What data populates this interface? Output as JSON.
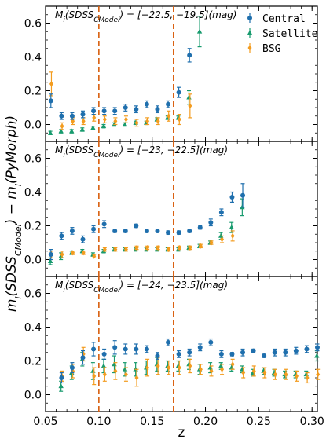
{
  "chart_data": {
    "type": "scatter",
    "xlabel": "z",
    "ylabel": "m_i(SDSS_CModel) − m_i(PyMorph)",
    "xlim": [
      0.05,
      0.305
    ],
    "ylim": [
      -0.1,
      0.7
    ],
    "x_ticks": [
      "0.05",
      "0.10",
      "0.15",
      "0.20",
      "0.25",
      "0.30"
    ],
    "y_ticks": [
      "0.0",
      "0.2",
      "0.4",
      "0.6"
    ],
    "vlines": [
      0.1,
      0.17
    ],
    "vline_color": "#d95f0e",
    "legend_position": "top-right",
    "legend": [
      {
        "name": "Central",
        "color": "#1f6fad",
        "marker": "circle"
      },
      {
        "name": "Satellite",
        "color": "#189b6e",
        "marker": "triangle"
      },
      {
        "name": "BSG",
        "color": "#f39c1f",
        "marker": "diamond"
      }
    ],
    "panels": [
      {
        "label": "M_i(SDSS_CModel) = [−22.5, −19.5](mag)",
        "label_parts": {
          "pre": "M",
          "sub1": "i",
          "mid": "(SDSS",
          "sub2": "CModel",
          "post": ") = [−22.5, −19.5](mag)"
        },
        "central": [
          [
            0.055,
            0.14,
            0.04
          ],
          [
            0.065,
            0.05,
            0.02
          ],
          [
            0.075,
            0.05,
            0.02
          ],
          [
            0.085,
            0.06,
            0.02
          ],
          [
            0.095,
            0.08,
            0.02
          ],
          [
            0.105,
            0.08,
            0.02
          ],
          [
            0.115,
            0.08,
            0.02
          ],
          [
            0.125,
            0.1,
            0.02
          ],
          [
            0.135,
            0.09,
            0.02
          ],
          [
            0.145,
            0.12,
            0.02
          ],
          [
            0.155,
            0.09,
            0.02
          ],
          [
            0.165,
            0.12,
            0.02
          ],
          [
            0.175,
            0.19,
            0.03
          ],
          [
            0.185,
            0.41,
            0.04
          ]
        ],
        "satellite": [
          [
            0.055,
            -0.05,
            0.01
          ],
          [
            0.065,
            -0.04,
            0.01
          ],
          [
            0.075,
            -0.04,
            0.01
          ],
          [
            0.085,
            -0.03,
            0.01
          ],
          [
            0.095,
            -0.02,
            0.01
          ],
          [
            0.105,
            -0.01,
            0.01
          ],
          [
            0.115,
            0.0,
            0.01
          ],
          [
            0.125,
            0.0,
            0.01
          ],
          [
            0.135,
            0.01,
            0.01
          ],
          [
            0.145,
            0.01,
            0.01
          ],
          [
            0.155,
            0.03,
            0.01
          ],
          [
            0.165,
            0.04,
            0.01
          ],
          [
            0.175,
            0.04,
            0.01
          ],
          [
            0.185,
            0.16,
            0.04
          ],
          [
            0.195,
            0.55,
            0.09
          ]
        ],
        "bsg": [
          [
            0.055,
            0.24,
            0.07
          ],
          [
            0.065,
            -0.01,
            0.02
          ],
          [
            0.075,
            0.02,
            0.02
          ],
          [
            0.085,
            0.02,
            0.02
          ],
          [
            0.095,
            0.04,
            0.02
          ],
          [
            0.105,
            0.03,
            0.02
          ],
          [
            0.115,
            0.02,
            0.02
          ],
          [
            0.125,
            0.03,
            0.02
          ],
          [
            0.135,
            0.01,
            0.02
          ],
          [
            0.145,
            0.02,
            0.02
          ],
          [
            0.155,
            0.02,
            0.02
          ],
          [
            0.165,
            0.05,
            0.03
          ],
          [
            0.175,
            0.03,
            0.03
          ],
          [
            0.185,
            0.11,
            0.07
          ]
        ]
      },
      {
        "label": "M_i(SDSS_CModel) = [−23, −22.5](mag)",
        "label_parts": {
          "pre": "M",
          "sub1": "i",
          "mid": "(SDSS",
          "sub2": "CModel",
          "post": ") = [−23, −22.5](mag)"
        },
        "central": [
          [
            0.055,
            0.03,
            0.03
          ],
          [
            0.065,
            0.14,
            0.02
          ],
          [
            0.075,
            0.17,
            0.02
          ],
          [
            0.085,
            0.12,
            0.02
          ],
          [
            0.095,
            0.18,
            0.02
          ],
          [
            0.105,
            0.21,
            0.02
          ],
          [
            0.115,
            0.17,
            0.01
          ],
          [
            0.125,
            0.17,
            0.01
          ],
          [
            0.135,
            0.2,
            0.01
          ],
          [
            0.145,
            0.17,
            0.01
          ],
          [
            0.155,
            0.17,
            0.01
          ],
          [
            0.165,
            0.16,
            0.01
          ],
          [
            0.175,
            0.16,
            0.01
          ],
          [
            0.185,
            0.17,
            0.01
          ],
          [
            0.195,
            0.19,
            0.01
          ],
          [
            0.205,
            0.22,
            0.02
          ],
          [
            0.215,
            0.28,
            0.02
          ],
          [
            0.225,
            0.37,
            0.03
          ],
          [
            0.235,
            0.38,
            0.07
          ]
        ],
        "satellite": [
          [
            0.055,
            -0.01,
            0.02
          ],
          [
            0.065,
            0.02,
            0.02
          ],
          [
            0.075,
            0.04,
            0.01
          ],
          [
            0.085,
            0.05,
            0.01
          ],
          [
            0.095,
            0.03,
            0.01
          ],
          [
            0.105,
            0.05,
            0.01
          ],
          [
            0.115,
            0.06,
            0.01
          ],
          [
            0.125,
            0.06,
            0.01
          ],
          [
            0.135,
            0.06,
            0.01
          ],
          [
            0.145,
            0.06,
            0.01
          ],
          [
            0.155,
            0.06,
            0.01
          ],
          [
            0.165,
            0.06,
            0.01
          ],
          [
            0.175,
            0.06,
            0.01
          ],
          [
            0.185,
            0.07,
            0.01
          ],
          [
            0.195,
            0.08,
            0.01
          ],
          [
            0.205,
            0.1,
            0.01
          ],
          [
            0.215,
            0.14,
            0.02
          ],
          [
            0.225,
            0.19,
            0.03
          ],
          [
            0.235,
            0.31,
            0.05
          ]
        ],
        "bsg": [
          [
            0.055,
            0.03,
            0.02
          ],
          [
            0.065,
            0.03,
            0.02
          ],
          [
            0.075,
            0.04,
            0.01
          ],
          [
            0.085,
            0.04,
            0.01
          ],
          [
            0.095,
            0.02,
            0.01
          ],
          [
            0.105,
            0.06,
            0.01
          ],
          [
            0.115,
            0.06,
            0.01
          ],
          [
            0.125,
            0.06,
            0.01
          ],
          [
            0.135,
            0.07,
            0.01
          ],
          [
            0.145,
            0.07,
            0.01
          ],
          [
            0.155,
            0.07,
            0.01
          ],
          [
            0.165,
            0.06,
            0.01
          ],
          [
            0.175,
            0.07,
            0.01
          ],
          [
            0.185,
            0.07,
            0.01
          ],
          [
            0.195,
            0.08,
            0.01
          ],
          [
            0.205,
            0.1,
            0.01
          ],
          [
            0.215,
            0.12,
            0.02
          ],
          [
            0.225,
            0.14,
            0.03
          ]
        ]
      },
      {
        "label": "M_i(SDSS_CModel) = [−24, −23.5](mag)",
        "label_parts": {
          "pre": "M",
          "sub1": "i",
          "mid": "(SDSS",
          "sub2": "CModel",
          "post": ") = [−24, −23.5](mag)"
        },
        "central": [
          [
            0.065,
            0.1,
            0.03
          ],
          [
            0.075,
            0.16,
            0.03
          ],
          [
            0.085,
            0.22,
            0.04
          ],
          [
            0.095,
            0.27,
            0.04
          ],
          [
            0.105,
            0.24,
            0.03
          ],
          [
            0.115,
            0.28,
            0.04
          ],
          [
            0.125,
            0.27,
            0.03
          ],
          [
            0.135,
            0.27,
            0.03
          ],
          [
            0.145,
            0.27,
            0.02
          ],
          [
            0.155,
            0.23,
            0.02
          ],
          [
            0.165,
            0.31,
            0.02
          ],
          [
            0.175,
            0.24,
            0.02
          ],
          [
            0.185,
            0.25,
            0.02
          ],
          [
            0.195,
            0.28,
            0.02
          ],
          [
            0.205,
            0.31,
            0.02
          ],
          [
            0.215,
            0.24,
            0.02
          ],
          [
            0.225,
            0.24,
            0.01
          ],
          [
            0.235,
            0.25,
            0.02
          ],
          [
            0.245,
            0.26,
            0.01
          ],
          [
            0.255,
            0.23,
            0.01
          ],
          [
            0.265,
            0.25,
            0.02
          ],
          [
            0.275,
            0.25,
            0.02
          ],
          [
            0.285,
            0.26,
            0.02
          ],
          [
            0.295,
            0.27,
            0.02
          ],
          [
            0.305,
            0.28,
            0.02
          ]
        ],
        "satellite": [
          [
            0.065,
            0.05,
            0.03
          ],
          [
            0.075,
            0.13,
            0.04
          ],
          [
            0.085,
            0.21,
            0.04
          ],
          [
            0.095,
            0.14,
            0.05
          ],
          [
            0.105,
            0.17,
            0.04
          ],
          [
            0.115,
            0.18,
            0.05
          ],
          [
            0.125,
            0.15,
            0.04
          ],
          [
            0.135,
            0.15,
            0.04
          ],
          [
            0.145,
            0.16,
            0.04
          ],
          [
            0.155,
            0.18,
            0.04
          ],
          [
            0.165,
            0.17,
            0.03
          ],
          [
            0.175,
            0.17,
            0.03
          ],
          [
            0.185,
            0.18,
            0.03
          ],
          [
            0.195,
            0.15,
            0.03
          ],
          [
            0.205,
            0.16,
            0.03
          ],
          [
            0.215,
            0.17,
            0.02
          ],
          [
            0.225,
            0.16,
            0.02
          ],
          [
            0.235,
            0.15,
            0.02
          ],
          [
            0.245,
            0.13,
            0.02
          ],
          [
            0.255,
            0.14,
            0.02
          ],
          [
            0.265,
            0.13,
            0.02
          ],
          [
            0.275,
            0.12,
            0.02
          ],
          [
            0.285,
            0.12,
            0.02
          ],
          [
            0.295,
            0.12,
            0.02
          ],
          [
            0.305,
            0.23,
            0.03
          ]
        ],
        "bsg": [
          [
            0.065,
            0.11,
            0.03
          ],
          [
            0.075,
            0.14,
            0.04
          ],
          [
            0.085,
            0.24,
            0.04
          ],
          [
            0.095,
            0.11,
            0.05
          ],
          [
            0.105,
            0.12,
            0.04
          ],
          [
            0.115,
            0.14,
            0.05
          ],
          [
            0.125,
            0.12,
            0.04
          ],
          [
            0.135,
            0.1,
            0.05
          ],
          [
            0.145,
            0.16,
            0.05
          ],
          [
            0.155,
            0.17,
            0.05
          ],
          [
            0.165,
            0.16,
            0.04
          ],
          [
            0.175,
            0.16,
            0.04
          ],
          [
            0.185,
            0.17,
            0.04
          ],
          [
            0.195,
            0.15,
            0.03
          ],
          [
            0.205,
            0.14,
            0.03
          ],
          [
            0.215,
            0.15,
            0.03
          ],
          [
            0.225,
            0.18,
            0.03
          ],
          [
            0.235,
            0.13,
            0.03
          ],
          [
            0.245,
            0.14,
            0.03
          ],
          [
            0.255,
            0.13,
            0.03
          ],
          [
            0.265,
            0.12,
            0.03
          ],
          [
            0.275,
            0.12,
            0.03
          ],
          [
            0.285,
            0.11,
            0.03
          ],
          [
            0.295,
            0.1,
            0.03
          ],
          [
            0.305,
            0.12,
            0.03
          ]
        ]
      }
    ]
  }
}
